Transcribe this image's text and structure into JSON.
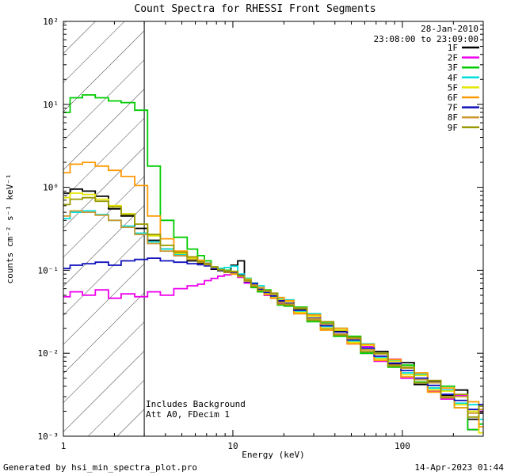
{
  "legend": {
    "date": "28-Jan-2010",
    "time_range": "23:08:00 to 23:09:00",
    "color": "#cc0000"
  },
  "footer": {
    "generated_by": "Generated by hsi_min_spectra_plot.pro",
    "timestamp": "14-Apr-2023 01:44"
  },
  "chart_data": {
    "type": "line",
    "title": "Count Spectra for RHESSI Front Segments",
    "xlabel": "Energy (keV)",
    "ylabel": "counts cm⁻² s⁻¹ keV⁻¹",
    "annotations": [
      "Includes Background",
      "Att A0, FDecim 1"
    ],
    "xscale": "log",
    "yscale": "log",
    "xlim": [
      1,
      300
    ],
    "ylim": [
      0.001,
      100
    ],
    "xticks": {
      "values": [
        1,
        10,
        100
      ],
      "labels": [
        "1",
        "10",
        "100"
      ]
    },
    "yticks": {
      "values": [
        100,
        10,
        1,
        0.1,
        0.01,
        0.001
      ],
      "labels": [
        "10²",
        "10¹",
        "10⁰",
        "10⁻¹",
        "10⁻²",
        "10⁻³"
      ]
    },
    "excluded_region": {
      "xmin": 1,
      "xmax": 3,
      "style": "hatched"
    },
    "legend_position": "top-right",
    "grid": false,
    "x": [
      1.0,
      1.2,
      1.4,
      1.7,
      2.0,
      2.4,
      2.9,
      3.4,
      4.1,
      4.9,
      5.9,
      6.5,
      7.1,
      7.8,
      8.5,
      9.3,
      10.2,
      11.2,
      12.2,
      13.4,
      14.6,
      16.0,
      17.5,
      19.2,
      21,
      25,
      30,
      36,
      43,
      52,
      62,
      75,
      90,
      107,
      129,
      154,
      185,
      222,
      266,
      300
    ],
    "series": [
      {
        "name": "1F",
        "color": "#000000",
        "values": [
          0.85,
          0.95,
          0.9,
          0.78,
          0.55,
          0.45,
          0.32,
          0.23,
          0.18,
          0.15,
          0.13,
          0.122,
          0.121,
          0.103,
          0.1,
          0.096,
          0.115,
          0.13,
          0.071,
          0.07,
          0.06,
          0.05,
          0.0525,
          0.042,
          0.039,
          0.034,
          0.0297,
          0.0198,
          0.0185,
          0.0155,
          0.01,
          0.0105,
          0.0074,
          0.0077,
          0.0042,
          0.0046,
          0.0031,
          0.0036,
          0.0016,
          0.0019
        ]
      },
      {
        "name": "2F",
        "color": "#ee00ee",
        "values": [
          0.048,
          0.055,
          0.05,
          0.058,
          0.046,
          0.052,
          0.048,
          0.055,
          0.05,
          0.06,
          0.065,
          0.068,
          0.075,
          0.08,
          0.085,
          0.088,
          0.09,
          0.082,
          0.07,
          0.063,
          0.055,
          0.05,
          0.046,
          0.04,
          0.043,
          0.03,
          0.026,
          0.02,
          0.017,
          0.013,
          0.012,
          0.008,
          0.0085,
          0.005,
          0.0055,
          0.0035,
          0.0028,
          0.0031,
          0.0012,
          0.002
        ]
      },
      {
        "name": "3F",
        "color": "#00cc00",
        "values": [
          8.0,
          12.0,
          13.0,
          12.0,
          11.0,
          10.5,
          8.5,
          1.8,
          0.4,
          0.25,
          0.18,
          0.15,
          0.13,
          0.11,
          0.105,
          0.1,
          0.095,
          0.088,
          0.08,
          0.062,
          0.055,
          0.058,
          0.052,
          0.038,
          0.037,
          0.036,
          0.024,
          0.023,
          0.016,
          0.016,
          0.01,
          0.01,
          0.0068,
          0.0072,
          0.0045,
          0.0038,
          0.004,
          0.0022,
          0.0012,
          0.0014
        ]
      },
      {
        "name": "4F",
        "color": "#00dddd",
        "values": [
          0.42,
          0.5,
          0.52,
          0.47,
          0.4,
          0.34,
          0.28,
          0.22,
          0.18,
          0.155,
          0.135,
          0.128,
          0.12,
          0.11,
          0.105,
          0.108,
          0.112,
          0.09,
          0.08,
          0.07,
          0.065,
          0.052,
          0.048,
          0.046,
          0.044,
          0.032,
          0.03,
          0.021,
          0.02,
          0.014,
          0.013,
          0.0088,
          0.0082,
          0.0058,
          0.0056,
          0.0038,
          0.0036,
          0.0025,
          0.0024,
          0.0016
        ]
      },
      {
        "name": "5F",
        "color": "#e6e600",
        "values": [
          0.75,
          0.85,
          0.82,
          0.72,
          0.6,
          0.48,
          0.36,
          0.26,
          0.2,
          0.16,
          0.14,
          0.13,
          0.118,
          0.108,
          0.098,
          0.094,
          0.092,
          0.086,
          0.078,
          0.065,
          0.058,
          0.053,
          0.047,
          0.044,
          0.042,
          0.031,
          0.028,
          0.02,
          0.019,
          0.0135,
          0.0125,
          0.0086,
          0.008,
          0.0055,
          0.0054,
          0.0036,
          0.0035,
          0.0024,
          0.002,
          0.0011
        ]
      },
      {
        "name": "6F",
        "color": "#ff9900",
        "values": [
          1.5,
          1.9,
          2.0,
          1.8,
          1.6,
          1.35,
          1.05,
          0.45,
          0.24,
          0.17,
          0.145,
          0.132,
          0.12,
          0.109,
          0.1,
          0.095,
          0.09,
          0.084,
          0.077,
          0.068,
          0.062,
          0.051,
          0.046,
          0.047,
          0.043,
          0.03,
          0.029,
          0.019,
          0.02,
          0.013,
          0.0128,
          0.0082,
          0.0084,
          0.0052,
          0.0058,
          0.0034,
          0.0038,
          0.0022,
          0.0026,
          0.0013
        ]
      },
      {
        "name": "7F",
        "color": "#1111bb",
        "values": [
          0.105,
          0.115,
          0.12,
          0.125,
          0.115,
          0.13,
          0.135,
          0.14,
          0.13,
          0.125,
          0.12,
          0.117,
          0.113,
          0.105,
          0.099,
          0.096,
          0.094,
          0.087,
          0.073,
          0.069,
          0.059,
          0.054,
          0.049,
          0.043,
          0.04,
          0.033,
          0.0265,
          0.0215,
          0.018,
          0.0145,
          0.0115,
          0.0092,
          0.0076,
          0.0062,
          0.005,
          0.0041,
          0.0032,
          0.0027,
          0.0021,
          0.0024
        ]
      },
      {
        "name": "8F",
        "color": "#cc9933",
        "values": [
          0.45,
          0.52,
          0.5,
          0.46,
          0.4,
          0.33,
          0.27,
          0.21,
          0.17,
          0.15,
          0.135,
          0.125,
          0.117,
          0.108,
          0.102,
          0.098,
          0.096,
          0.085,
          0.074,
          0.066,
          0.061,
          0.056,
          0.051,
          0.041,
          0.039,
          0.035,
          0.026,
          0.0225,
          0.017,
          0.015,
          0.011,
          0.0098,
          0.0072,
          0.0066,
          0.0048,
          0.0044,
          0.003,
          0.003,
          0.0019,
          0.0021
        ]
      },
      {
        "name": "9F",
        "color": "#999900",
        "values": [
          0.62,
          0.72,
          0.75,
          0.68,
          0.58,
          0.47,
          0.36,
          0.27,
          0.2,
          0.165,
          0.145,
          0.127,
          0.119,
          0.11,
          0.101,
          0.097,
          0.097,
          0.086,
          0.076,
          0.064,
          0.057,
          0.057,
          0.053,
          0.039,
          0.038,
          0.0345,
          0.025,
          0.024,
          0.0165,
          0.0155,
          0.0105,
          0.01,
          0.007,
          0.0068,
          0.0044,
          0.0047,
          0.0029,
          0.0032,
          0.0017,
          0.0023
        ]
      }
    ]
  }
}
